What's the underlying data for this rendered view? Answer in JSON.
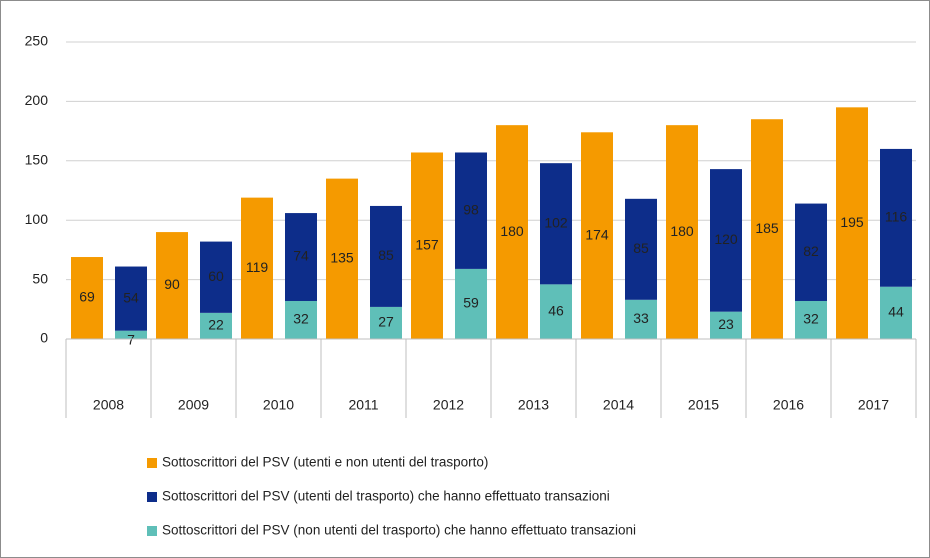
{
  "chart_data": {
    "type": "bar",
    "categories": [
      "2008",
      "2009",
      "2010",
      "2011",
      "2012",
      "2013",
      "2014",
      "2015",
      "2016",
      "2017"
    ],
    "series": [
      {
        "name": "Sottoscrittori del PSV (utenti e non utenti del trasporto)",
        "color": "#f59a00",
        "values": [
          69,
          90,
          119,
          135,
          157,
          180,
          174,
          180,
          185,
          195
        ]
      },
      {
        "name": "Sottoscrittori del PSV (utenti del trasporto) che hanno effettuato transazioni",
        "color": "#0d2d8a",
        "values": [
          54,
          60,
          74,
          85,
          98,
          102,
          85,
          120,
          82,
          116
        ]
      },
      {
        "name": "Sottoscrittori del PSV (non utenti del trasporto) che hanno effettuato transazioni",
        "color": "#5fbfb8",
        "values": [
          7,
          22,
          32,
          27,
          59,
          46,
          33,
          23,
          32,
          44
        ]
      }
    ],
    "ylim": [
      0,
      250
    ],
    "yticks": [
      0,
      50,
      100,
      150,
      200,
      250
    ],
    "grid": true,
    "legend": "bottom"
  }
}
